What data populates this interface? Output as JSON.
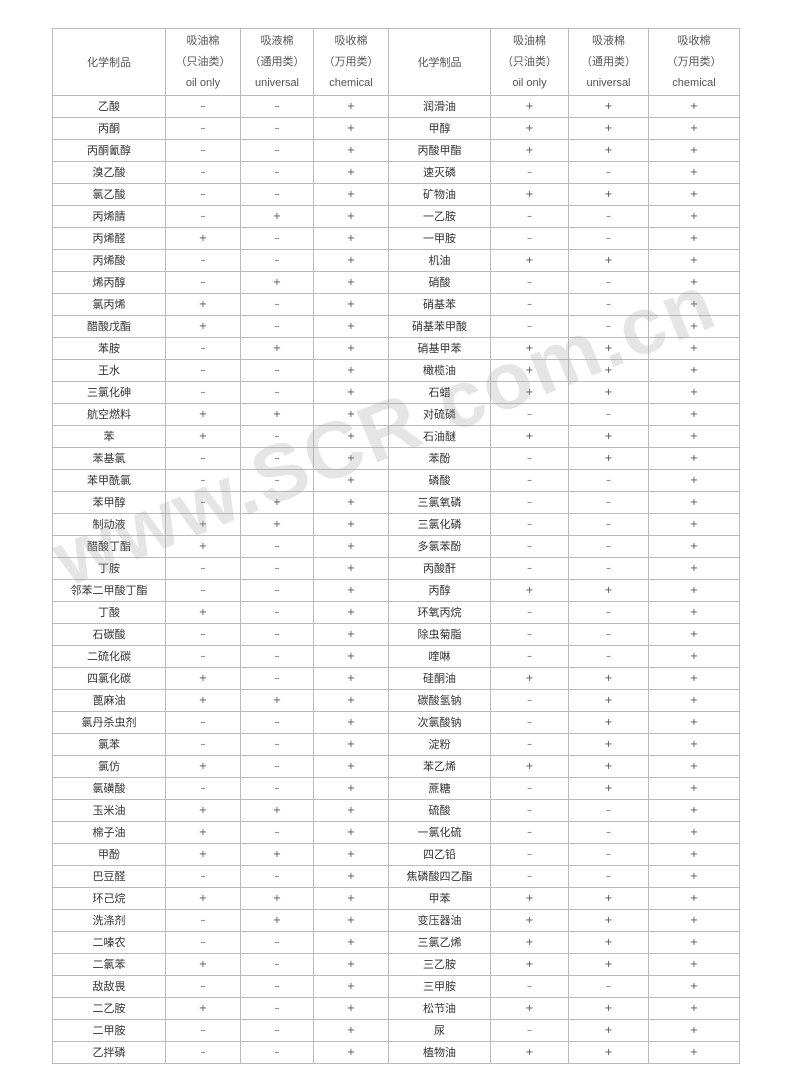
{
  "header": {
    "chemical_label": "化学制品",
    "columns": [
      {
        "name": "吸油棉",
        "type": "（只油类）",
        "en": "oil only"
      },
      {
        "name": "吸液棉",
        "type": "（通用类）",
        "en": "universal"
      },
      {
        "name": "吸收棉",
        "type": "（万用类）",
        "en": "chemical"
      }
    ]
  },
  "rows": [
    [
      [
        "乙酸",
        "-",
        "-",
        "+"
      ],
      [
        "润滑油",
        "+",
        "+",
        "+"
      ]
    ],
    [
      [
        "丙酮",
        "-",
        "-",
        "+"
      ],
      [
        "甲醇",
        "+",
        "+",
        "+"
      ]
    ],
    [
      [
        "丙酮氰醇",
        "-",
        "-",
        "+"
      ],
      [
        "丙酸甲酯",
        "+",
        "+",
        "+"
      ]
    ],
    [
      [
        "溴乙酸",
        "-",
        "-",
        "+"
      ],
      [
        "速灭磷",
        "-",
        "-",
        "+"
      ]
    ],
    [
      [
        "氯乙酸",
        "-",
        "-",
        "+"
      ],
      [
        "矿物油",
        "+",
        "+",
        "+"
      ]
    ],
    [
      [
        "丙烯腈",
        "-",
        "+",
        "+"
      ],
      [
        "一乙胺",
        "-",
        "-",
        "+"
      ]
    ],
    [
      [
        "丙烯醛",
        "+",
        "-",
        "+"
      ],
      [
        "一甲胺",
        "-",
        "-",
        "+"
      ]
    ],
    [
      [
        "丙烯酸",
        "-",
        "-",
        "+"
      ],
      [
        "机油",
        "+",
        "+",
        "+"
      ]
    ],
    [
      [
        "烯丙醇",
        "-",
        "+",
        "+"
      ],
      [
        "硝酸",
        "-",
        "-",
        "+"
      ]
    ],
    [
      [
        "氯丙烯",
        "+",
        "-",
        "+"
      ],
      [
        "硝基苯",
        "-",
        "-",
        "+"
      ]
    ],
    [
      [
        "醋酸戊酯",
        "+",
        "-",
        "+"
      ],
      [
        "硝基苯甲酸",
        "-",
        "-",
        "+"
      ]
    ],
    [
      [
        "苯胺",
        "-",
        "+",
        "+"
      ],
      [
        "硝基甲苯",
        "+",
        "+",
        "+"
      ]
    ],
    [
      [
        "王水",
        "-",
        "-",
        "+"
      ],
      [
        "橄榄油",
        "+",
        "+",
        "+"
      ]
    ],
    [
      [
        "三氯化砷",
        "-",
        "-",
        "+"
      ],
      [
        "石蜡",
        "+",
        "+",
        "+"
      ]
    ],
    [
      [
        "航空燃料",
        "+",
        "+",
        "+"
      ],
      [
        "对硫磷",
        "-",
        "-",
        "+"
      ]
    ],
    [
      [
        "苯",
        "+",
        "-",
        "+"
      ],
      [
        "石油醚",
        "+",
        "+",
        "+"
      ]
    ],
    [
      [
        "苯基氯",
        "-",
        "-",
        "+"
      ],
      [
        "苯酚",
        "-",
        "+",
        "+"
      ]
    ],
    [
      [
        "苯甲酰氯",
        "-",
        "-",
        "+"
      ],
      [
        "磷酸",
        "-",
        "-",
        "+"
      ]
    ],
    [
      [
        "苯甲醇",
        "-",
        "+",
        "+"
      ],
      [
        "三氯氧磷",
        "-",
        "-",
        "+"
      ]
    ],
    [
      [
        "制动液",
        "+",
        "+",
        "+"
      ],
      [
        "三氯化磷",
        "-",
        "-",
        "+"
      ]
    ],
    [
      [
        "醋酸丁酯",
        "+",
        "-",
        "+"
      ],
      [
        "多氯苯酚",
        "-",
        "-",
        "+"
      ]
    ],
    [
      [
        "丁胺",
        "-",
        "-",
        "+"
      ],
      [
        "丙酸酐",
        "-",
        "-",
        "+"
      ]
    ],
    [
      [
        "邻苯二甲酸丁酯",
        "-",
        "-",
        "+"
      ],
      [
        "丙醇",
        "+",
        "+",
        "+"
      ]
    ],
    [
      [
        "丁酸",
        "+",
        "-",
        "+"
      ],
      [
        "环氧丙烷",
        "-",
        "-",
        "+"
      ]
    ],
    [
      [
        "石碳酸",
        "-",
        "-",
        "+"
      ],
      [
        "除虫菊脂",
        "-",
        "-",
        "+"
      ]
    ],
    [
      [
        "二硫化碳",
        "-",
        "-",
        "+"
      ],
      [
        "喹啉",
        "-",
        "-",
        "+"
      ]
    ],
    [
      [
        "四氯化碳",
        "+",
        "-",
        "+"
      ],
      [
        "硅酮油",
        "+",
        "+",
        "+"
      ]
    ],
    [
      [
        "蓖麻油",
        "+",
        "+",
        "+"
      ],
      [
        "碳酸氢钠",
        "-",
        "+",
        "+"
      ]
    ],
    [
      [
        "氯丹杀虫剂",
        "-",
        "-",
        "+"
      ],
      [
        "次氯酸钠",
        "-",
        "+",
        "+"
      ]
    ],
    [
      [
        "氯苯",
        "-",
        "-",
        "+"
      ],
      [
        "淀粉",
        "-",
        "+",
        "+"
      ]
    ],
    [
      [
        "氯仿",
        "+",
        "-",
        "+"
      ],
      [
        "苯乙烯",
        "+",
        "+",
        "+"
      ]
    ],
    [
      [
        "氯磺酸",
        "-",
        "-",
        "+"
      ],
      [
        "蔗糖",
        "-",
        "+",
        "+"
      ]
    ],
    [
      [
        "玉米油",
        "+",
        "+",
        "+"
      ],
      [
        "硫酸",
        "-",
        "-",
        "+"
      ]
    ],
    [
      [
        "棉子油",
        "+",
        "-",
        "+"
      ],
      [
        "一氯化硫",
        "-",
        "-",
        "+"
      ]
    ],
    [
      [
        "甲酚",
        "+",
        "+",
        "+"
      ],
      [
        "四乙铅",
        "-",
        "-",
        "+"
      ]
    ],
    [
      [
        "巴豆醛",
        "-",
        "-",
        "+"
      ],
      [
        "焦磷酸四乙酯",
        "-",
        "-",
        "+"
      ]
    ],
    [
      [
        "环己烷",
        "+",
        "+",
        "+"
      ],
      [
        "甲苯",
        "+",
        "+",
        "+"
      ]
    ],
    [
      [
        "洗涤剂",
        "-",
        "+",
        "+"
      ],
      [
        "变压器油",
        "+",
        "+",
        "+"
      ]
    ],
    [
      [
        "二嗪农",
        "-",
        "-",
        "+"
      ],
      [
        "三氯乙烯",
        "+",
        "+",
        "+"
      ]
    ],
    [
      [
        "二氯苯",
        "+",
        "-",
        "+"
      ],
      [
        "三乙胺",
        "+",
        "+",
        "+"
      ]
    ],
    [
      [
        "敌敌畏",
        "-",
        "-",
        "+"
      ],
      [
        "三甲胺",
        "-",
        "-",
        "+"
      ]
    ],
    [
      [
        "二乙胺",
        "+",
        "-",
        "+"
      ],
      [
        "松节油",
        "+",
        "+",
        "+"
      ]
    ],
    [
      [
        "二甲胺",
        "-",
        "-",
        "+"
      ],
      [
        "尿",
        "-",
        "+",
        "+"
      ]
    ],
    [
      [
        "乙拌磷",
        "-",
        "-",
        "+"
      ],
      [
        "植物油",
        "+",
        "+",
        "+"
      ]
    ]
  ],
  "watermark": "www.SCR com.cn"
}
